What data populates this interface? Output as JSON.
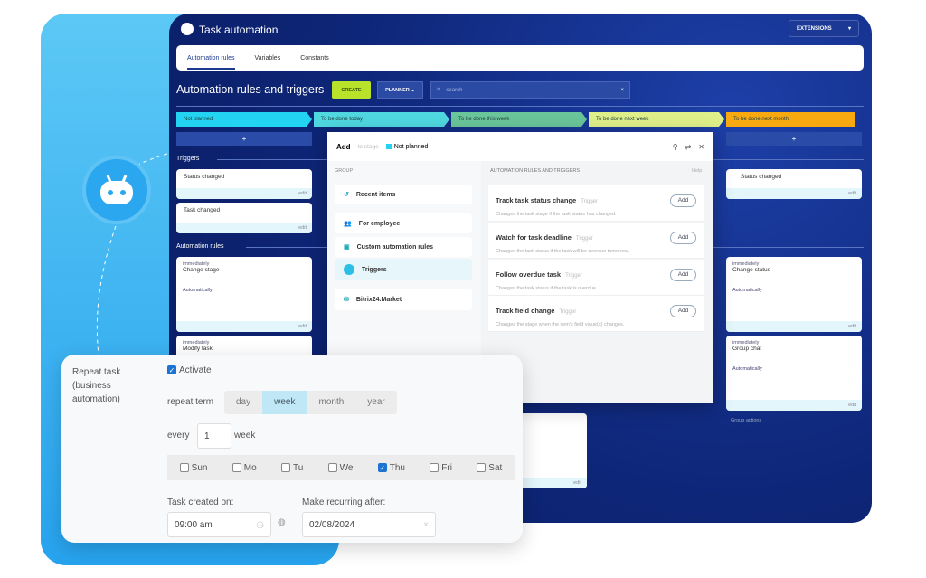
{
  "app": {
    "title": "Task automation",
    "extensions": "EXTENSIONS"
  },
  "tabs": [
    "Automation rules",
    "Variables",
    "Constants"
  ],
  "page_title": "Automation rules and triggers",
  "toolbar": {
    "create": "CREATE",
    "planner": "PLANNER",
    "search_placeholder": "search"
  },
  "stages": [
    {
      "label": "Not planned",
      "color": "#22d3f2"
    },
    {
      "label": "To be done today",
      "color": "#4fd8e0"
    },
    {
      "label": "To be done this week",
      "color": "#6ac59a"
    },
    {
      "label": "To be done next week",
      "color": "#dff08a"
    },
    {
      "label": "To be done next month",
      "color": "#f8a90f"
    }
  ],
  "plus": "+",
  "triggers_label": "Triggers",
  "rules_label": "Automation rules",
  "edit": "edit",
  "help_hint": "help",
  "trigger_cards": {
    "col1": [
      "Status changed",
      "Task changed"
    ],
    "col5": [
      "Status changed"
    ]
  },
  "rule_cards": {
    "col1": [
      {
        "when": "immediately",
        "title": "Change stage",
        "by": "Automatically"
      },
      {
        "when": "immediately",
        "title": "Modify task"
      }
    ],
    "col5": [
      {
        "when": "immediately",
        "title": "Change status",
        "by": "Automatically"
      },
      {
        "when": "immediately",
        "title": "Group chat",
        "by": "Automatically"
      }
    ],
    "by_label": "to"
  },
  "group_actions": "Group actions",
  "dialog": {
    "title": "Add",
    "to_stage": "to stage",
    "stage": "Not planned",
    "group_header": "GROUP",
    "rules_header": "AUTOMATION RULES AND TRIGGERS",
    "help": "Help",
    "groups": [
      "Recent items",
      "For employee",
      "Custom automation rules",
      "Triggers",
      "Bitrix24.Market"
    ],
    "rules": [
      {
        "title": "Track task status change",
        "tag": "Trigger",
        "desc": "Changes the task stage if the task status has changed.",
        "add": "Add"
      },
      {
        "title": "Watch for task deadline",
        "tag": "Trigger",
        "desc": "Changes the task status if the task will be overdue tomorrow.",
        "add": "Add"
      },
      {
        "title": "Follow overdue task",
        "tag": "Trigger",
        "desc": "Changes the task status if the task is overdue.",
        "add": "Add"
      },
      {
        "title": "Track field change",
        "tag": "Trigger",
        "desc": "Changes the stage when the item's field value(s) changes.",
        "add": "Add"
      }
    ]
  },
  "repeat": {
    "label": "Repeat task (business automation)",
    "activate": "Activate",
    "term_label": "repeat term",
    "terms": [
      "day",
      "week",
      "month",
      "year"
    ],
    "selected_term": "week",
    "every": "every",
    "every_value": "1",
    "unit": "week",
    "days": [
      {
        "d": "Sun",
        "on": false
      },
      {
        "d": "Mo",
        "on": false
      },
      {
        "d": "Tu",
        "on": false
      },
      {
        "d": "We",
        "on": false
      },
      {
        "d": "Thu",
        "on": true
      },
      {
        "d": "Fri",
        "on": false
      },
      {
        "d": "Sat",
        "on": false
      }
    ],
    "created_label": "Task created on:",
    "created_value": "09:00 am",
    "recurring_label": "Make recurring after:",
    "recurring_value": "02/08/2024"
  }
}
